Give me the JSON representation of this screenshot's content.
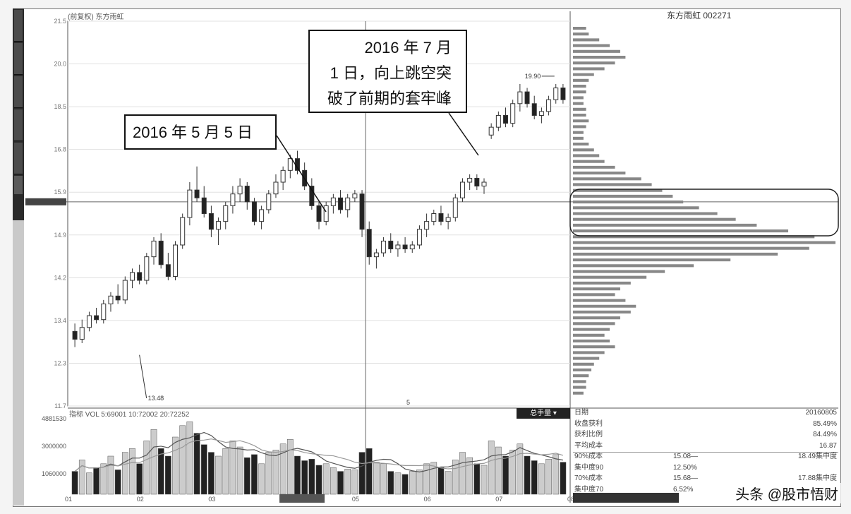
{
  "header": {
    "indicator_label": "(前复权) 东方雨虹",
    "stock_title": "东方雨虹 002271"
  },
  "callouts": {
    "may": "2016 年 5 月 5 日",
    "july_line1": "2016 年 7 月",
    "july_line2": "1 日，向上跳空突",
    "july_line3": "破了前期的套牢峰"
  },
  "markers": {
    "high": "19.90",
    "low": "13.48",
    "cursor_date": "5"
  },
  "volume_panel": {
    "indicator_text": "指标 VOL 5:69001 10:72002 20:72252",
    "button_label": "总手量",
    "y_ticks": [
      "4881530",
      "3000000",
      "1060000"
    ]
  },
  "stats": {
    "rows": [
      {
        "k": "日期",
        "v": "20160805"
      },
      {
        "k": "收盘获利",
        "v": "85.49%"
      },
      {
        "k": "获利比例",
        "v": "84.49%"
      },
      {
        "k": "平均成本",
        "v": "16.87"
      },
      {
        "k": "90%成本",
        "m": "15.08—",
        "v": "18.49集中度"
      },
      {
        "k": "集中度90",
        "m": "12.50%",
        "v": ""
      },
      {
        "k": "70%成本",
        "m": "15.68—",
        "v": "17.88集中度"
      },
      {
        "k": "集中度70",
        "m": "6.52%",
        "v": ""
      }
    ]
  },
  "watermark": "头条 @股市悟财",
  "chart_data": {
    "type": "candlestick",
    "title": "东方雨虹 002271",
    "y_ticks": [
      "21.5",
      "20.0",
      "18.5",
      "16.8",
      "15.9",
      "14.9",
      "14.2",
      "13.4",
      "12.3",
      "11.7"
    ],
    "x_ticks": [
      "01",
      "02",
      "03",
      "04",
      "05",
      "06",
      "07",
      "08"
    ],
    "ylim": [
      11.7,
      21.5
    ],
    "candles": [
      [
        13.6,
        13.8,
        13.2,
        13.4
      ],
      [
        13.4,
        13.9,
        13.3,
        13.7
      ],
      [
        13.7,
        14.1,
        13.6,
        14.0
      ],
      [
        14.0,
        14.2,
        13.8,
        13.9
      ],
      [
        13.9,
        14.4,
        13.8,
        14.3
      ],
      [
        14.3,
        14.6,
        14.1,
        14.5
      ],
      [
        14.5,
        14.8,
        14.3,
        14.4
      ],
      [
        14.4,
        15.0,
        14.3,
        14.9
      ],
      [
        14.9,
        15.2,
        14.7,
        15.1
      ],
      [
        15.1,
        15.3,
        14.8,
        14.9
      ],
      [
        14.9,
        15.6,
        14.8,
        15.5
      ],
      [
        15.5,
        16.0,
        15.3,
        15.9
      ],
      [
        15.9,
        16.1,
        15.2,
        15.3
      ],
      [
        15.3,
        15.6,
        14.9,
        15.0
      ],
      [
        15.0,
        15.9,
        14.9,
        15.8
      ],
      [
        15.8,
        16.6,
        15.7,
        16.5
      ],
      [
        16.5,
        17.4,
        16.3,
        17.2
      ],
      [
        17.2,
        17.8,
        16.9,
        17.0
      ],
      [
        17.0,
        17.3,
        16.5,
        16.6
      ],
      [
        16.6,
        16.8,
        16.0,
        16.2
      ],
      [
        16.2,
        16.5,
        15.8,
        16.4
      ],
      [
        16.4,
        16.9,
        16.2,
        16.8
      ],
      [
        16.8,
        17.3,
        16.6,
        17.1
      ],
      [
        17.1,
        17.5,
        16.9,
        17.3
      ],
      [
        17.3,
        17.4,
        16.7,
        16.9
      ],
      [
        16.9,
        17.0,
        16.3,
        16.4
      ],
      [
        16.4,
        16.8,
        16.2,
        16.7
      ],
      [
        16.7,
        17.2,
        16.6,
        17.1
      ],
      [
        17.1,
        17.6,
        17.0,
        17.4
      ],
      [
        17.4,
        17.8,
        17.2,
        17.7
      ],
      [
        17.7,
        18.1,
        17.5,
        18.0
      ],
      [
        18.0,
        18.2,
        17.6,
        17.7
      ],
      [
        17.7,
        17.9,
        17.2,
        17.3
      ],
      [
        17.3,
        17.5,
        16.7,
        16.8
      ],
      [
        16.8,
        16.9,
        16.2,
        16.4
      ],
      [
        16.4,
        16.9,
        16.3,
        16.8
      ],
      [
        16.8,
        17.1,
        16.6,
        17.0
      ],
      [
        17.0,
        17.2,
        16.6,
        16.7
      ],
      [
        16.7,
        17.1,
        16.5,
        17.0
      ],
      [
        17.0,
        17.2,
        16.9,
        17.1
      ],
      [
        17.1,
        17.2,
        16.0,
        16.2
      ],
      [
        16.2,
        16.4,
        15.3,
        15.5
      ],
      [
        15.5,
        15.7,
        15.2,
        15.6
      ],
      [
        15.6,
        16.0,
        15.5,
        15.9
      ],
      [
        15.9,
        16.1,
        15.6,
        15.7
      ],
      [
        15.7,
        15.9,
        15.5,
        15.8
      ],
      [
        15.8,
        16.0,
        15.6,
        15.7
      ],
      [
        15.7,
        15.9,
        15.6,
        15.8
      ],
      [
        15.8,
        16.3,
        15.7,
        16.2
      ],
      [
        16.2,
        16.6,
        16.0,
        16.4
      ],
      [
        16.4,
        16.7,
        16.3,
        16.6
      ],
      [
        16.6,
        16.8,
        16.3,
        16.4
      ],
      [
        16.4,
        16.6,
        16.2,
        16.5
      ],
      [
        16.5,
        17.1,
        16.4,
        17.0
      ],
      [
        17.0,
        17.5,
        16.9,
        17.4
      ],
      [
        17.4,
        17.6,
        17.2,
        17.5
      ],
      [
        17.5,
        17.6,
        17.2,
        17.3
      ],
      [
        17.3,
        17.5,
        17.1,
        17.4
      ],
      [
        18.6,
        18.9,
        18.5,
        18.8
      ],
      [
        18.8,
        19.2,
        18.7,
        19.1
      ],
      [
        19.1,
        19.3,
        18.8,
        18.9
      ],
      [
        18.9,
        19.5,
        18.8,
        19.4
      ],
      [
        19.4,
        19.9,
        19.2,
        19.7
      ],
      [
        19.7,
        19.8,
        19.3,
        19.4
      ],
      [
        19.4,
        19.6,
        19.0,
        19.1
      ],
      [
        19.1,
        19.3,
        18.9,
        19.2
      ],
      [
        19.2,
        19.6,
        19.1,
        19.5
      ],
      [
        19.5,
        19.9,
        19.4,
        19.8
      ],
      [
        19.8,
        19.9,
        19.4,
        19.5
      ]
    ],
    "volume": [
      0.3,
      0.45,
      0.28,
      0.35,
      0.4,
      0.5,
      0.32,
      0.55,
      0.6,
      0.4,
      0.7,
      0.85,
      0.6,
      0.5,
      0.75,
      0.9,
      0.95,
      0.8,
      0.65,
      0.55,
      0.5,
      0.6,
      0.7,
      0.62,
      0.48,
      0.52,
      0.4,
      0.55,
      0.58,
      0.66,
      0.72,
      0.5,
      0.44,
      0.46,
      0.38,
      0.4,
      0.35,
      0.3,
      0.33,
      0.32,
      0.55,
      0.6,
      0.42,
      0.4,
      0.3,
      0.28,
      0.26,
      0.3,
      0.32,
      0.4,
      0.42,
      0.35,
      0.3,
      0.45,
      0.55,
      0.48,
      0.4,
      0.38,
      0.7,
      0.62,
      0.5,
      0.58,
      0.66,
      0.5,
      0.44,
      0.4,
      0.46,
      0.52,
      0.42
    ],
    "chip_distribution": [
      0.05,
      0.06,
      0.1,
      0.14,
      0.18,
      0.2,
      0.16,
      0.12,
      0.08,
      0.06,
      0.05,
      0.05,
      0.04,
      0.04,
      0.05,
      0.05,
      0.06,
      0.05,
      0.04,
      0.04,
      0.06,
      0.08,
      0.1,
      0.12,
      0.16,
      0.2,
      0.26,
      0.3,
      0.34,
      0.38,
      0.42,
      0.48,
      0.55,
      0.62,
      0.7,
      0.82,
      0.92,
      1.0,
      0.9,
      0.78,
      0.6,
      0.46,
      0.35,
      0.28,
      0.22,
      0.18,
      0.16,
      0.2,
      0.24,
      0.22,
      0.18,
      0.16,
      0.14,
      0.12,
      0.14,
      0.16,
      0.12,
      0.1,
      0.08,
      0.07,
      0.06,
      0.05,
      0.05,
      0.04
    ]
  }
}
